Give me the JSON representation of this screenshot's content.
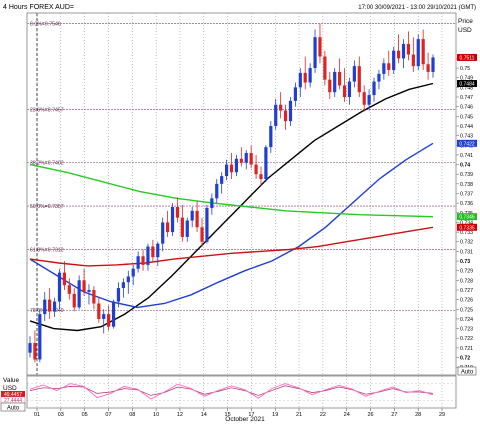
{
  "header": {
    "title": "4 Hours FOREX AUD=",
    "range": "17:00 30/09/2021 - 13:00 29/10/2021 (GMT)"
  },
  "price_axis": {
    "title": "Price",
    "unit": "USD",
    "ticks": [
      "0.751",
      "0.75",
      "0.749",
      "0.748",
      "0.747",
      "0.746",
      "0.745",
      "0.744",
      "0.743",
      "0.742",
      "0.741",
      "0.74",
      "0.739",
      "0.738",
      "0.737",
      "0.736",
      "0.735",
      "0.734",
      "0.733",
      "0.732",
      "0.731",
      "0.73",
      "0.729",
      "0.728",
      "0.727",
      "0.726",
      "0.725",
      "0.724",
      "0.723",
      "0.722",
      "0.721",
      "0.72",
      "0.719"
    ],
    "badges": [
      {
        "text": "0.7511",
        "value": 0.7511,
        "color": "#cc0000"
      },
      {
        "text": "0.7484",
        "value": 0.7484,
        "color": "#000000"
      },
      {
        "text": "0.7422",
        "value": 0.7422,
        "color": "#1e3fd0"
      },
      {
        "text": "0.7346",
        "value": 0.7346,
        "color": "#22bb22"
      },
      {
        "text": "0.7335",
        "value": 0.7335,
        "color": "#cc0000"
      }
    ],
    "auto_label": "Auto"
  },
  "indicator_panel": {
    "title": "Value",
    "unit": "USD",
    "badges": [
      "49.4457",
      "27.4444"
    ],
    "auto_label": "Auto"
  },
  "x_axis": {
    "ticks": [
      "01",
      "03",
      "05",
      "07",
      "08",
      "10",
      "12",
      "14",
      "15",
      "17",
      "19",
      "21",
      "22",
      "24",
      "26",
      "27",
      "28",
      "29"
    ],
    "label": "October 2021"
  },
  "fib_levels": [
    {
      "label": "0.0%=0.7546",
      "value": 0.7546
    },
    {
      "label": "23.6%=0.7457",
      "value": 0.7457
    },
    {
      "label": "38.2%=0.7402",
      "value": 0.7402
    },
    {
      "label": "50.0%=0.7357",
      "value": 0.7357
    },
    {
      "label": "61.8%=0.7312",
      "value": 0.7312
    },
    {
      "label": "78.6%=0.7249",
      "value": 0.7249
    }
  ],
  "colors": {
    "up": "#1e3fd0",
    "down": "#dd2222",
    "ma_black": "#000000",
    "ma_blue": "#1e3fd0",
    "ma_green": "#22cc22",
    "ma_red": "#cc1111",
    "fib": "#8b3a6b",
    "stoch": "#ff66cc"
  },
  "chart_data": {
    "type": "candlestick",
    "title": "4 Hours FOREX AUD=",
    "xlabel": "October 2021",
    "ylabel": "USD",
    "ylim": [
      0.7185,
      0.7555
    ],
    "grid": true,
    "candles": [
      [
        0.7205,
        0.7222,
        0.72,
        0.7215
      ],
      [
        0.7215,
        0.7228,
        0.7195,
        0.7198
      ],
      [
        0.7198,
        0.725,
        0.7195,
        0.7245
      ],
      [
        0.7245,
        0.7268,
        0.7238,
        0.726
      ],
      [
        0.726,
        0.7272,
        0.724,
        0.7248
      ],
      [
        0.7248,
        0.7262,
        0.7242,
        0.7258
      ],
      [
        0.7258,
        0.7292,
        0.725,
        0.7288
      ],
      [
        0.7288,
        0.73,
        0.727,
        0.7275
      ],
      [
        0.7275,
        0.7282,
        0.726,
        0.7266
      ],
      [
        0.7266,
        0.7272,
        0.7248,
        0.7252
      ],
      [
        0.7252,
        0.7285,
        0.725,
        0.728
      ],
      [
        0.728,
        0.7292,
        0.7264,
        0.7268
      ],
      [
        0.7268,
        0.7276,
        0.7255,
        0.727
      ],
      [
        0.727,
        0.7274,
        0.725,
        0.7256
      ],
      [
        0.7256,
        0.7262,
        0.7236,
        0.724
      ],
      [
        0.724,
        0.725,
        0.7225,
        0.7245
      ],
      [
        0.7245,
        0.7254,
        0.7228,
        0.7232
      ],
      [
        0.7232,
        0.726,
        0.723,
        0.7258
      ],
      [
        0.7258,
        0.7278,
        0.7252,
        0.7272
      ],
      [
        0.7272,
        0.7282,
        0.7262,
        0.7278
      ],
      [
        0.7278,
        0.729,
        0.7266,
        0.7284
      ],
      [
        0.7284,
        0.7296,
        0.7275,
        0.7292
      ],
      [
        0.7292,
        0.731,
        0.7288,
        0.7305
      ],
      [
        0.7305,
        0.7312,
        0.729,
        0.7296
      ],
      [
        0.7296,
        0.7318,
        0.729,
        0.7315
      ],
      [
        0.7315,
        0.7322,
        0.73,
        0.7304
      ],
      [
        0.7304,
        0.732,
        0.7295,
        0.7318
      ],
      [
        0.7318,
        0.7345,
        0.731,
        0.734
      ],
      [
        0.734,
        0.7352,
        0.7325,
        0.733
      ],
      [
        0.733,
        0.736,
        0.7326,
        0.7356
      ],
      [
        0.7356,
        0.7366,
        0.734,
        0.7345
      ],
      [
        0.7345,
        0.7358,
        0.732,
        0.7325
      ],
      [
        0.7325,
        0.7345,
        0.732,
        0.7342
      ],
      [
        0.7342,
        0.7356,
        0.7335,
        0.7352
      ],
      [
        0.7352,
        0.7362,
        0.733,
        0.7335
      ],
      [
        0.7335,
        0.7345,
        0.7315,
        0.732
      ],
      [
        0.732,
        0.7358,
        0.7318,
        0.7355
      ],
      [
        0.7355,
        0.737,
        0.7348,
        0.7365
      ],
      [
        0.7365,
        0.7385,
        0.736,
        0.738
      ],
      [
        0.738,
        0.7392,
        0.737,
        0.7388
      ],
      [
        0.7388,
        0.7405,
        0.7384,
        0.74
      ],
      [
        0.74,
        0.7412,
        0.7385,
        0.7392
      ],
      [
        0.7392,
        0.741,
        0.7388,
        0.7406
      ],
      [
        0.7406,
        0.7418,
        0.7398,
        0.7402
      ],
      [
        0.7402,
        0.7415,
        0.7395,
        0.7412
      ],
      [
        0.7412,
        0.742,
        0.7396,
        0.74
      ],
      [
        0.74,
        0.741,
        0.7385,
        0.739
      ],
      [
        0.739,
        0.7398,
        0.7378,
        0.7385
      ],
      [
        0.7385,
        0.742,
        0.7382,
        0.7418
      ],
      [
        0.7418,
        0.7445,
        0.7412,
        0.744
      ],
      [
        0.744,
        0.7468,
        0.7436,
        0.7462
      ],
      [
        0.7462,
        0.7475,
        0.7448,
        0.7456
      ],
      [
        0.7456,
        0.7462,
        0.7436,
        0.7445
      ],
      [
        0.7445,
        0.747,
        0.744,
        0.7466
      ],
      [
        0.7466,
        0.7485,
        0.746,
        0.748
      ],
      [
        0.748,
        0.75,
        0.747,
        0.7495
      ],
      [
        0.7495,
        0.7512,
        0.7478,
        0.7485
      ],
      [
        0.7485,
        0.7505,
        0.748,
        0.75
      ],
      [
        0.75,
        0.754,
        0.7495,
        0.7532
      ],
      [
        0.7532,
        0.7546,
        0.7505,
        0.7512
      ],
      [
        0.7512,
        0.7518,
        0.7482,
        0.7488
      ],
      [
        0.7488,
        0.7496,
        0.7468,
        0.7475
      ],
      [
        0.7475,
        0.75,
        0.747,
        0.7496
      ],
      [
        0.7496,
        0.751,
        0.7478,
        0.7482
      ],
      [
        0.7482,
        0.75,
        0.7465,
        0.747
      ],
      [
        0.747,
        0.749,
        0.7462,
        0.7486
      ],
      [
        0.7486,
        0.7508,
        0.748,
        0.7502
      ],
      [
        0.7502,
        0.7512,
        0.747,
        0.7475
      ],
      [
        0.7475,
        0.7482,
        0.7455,
        0.7462
      ],
      [
        0.7462,
        0.7478,
        0.7456,
        0.7472
      ],
      [
        0.7472,
        0.749,
        0.7465,
        0.7486
      ],
      [
        0.7486,
        0.7498,
        0.7478,
        0.7494
      ],
      [
        0.7494,
        0.751,
        0.7488,
        0.7505
      ],
      [
        0.7505,
        0.7518,
        0.7492,
        0.7498
      ],
      [
        0.7498,
        0.7522,
        0.7494,
        0.7518
      ],
      [
        0.7518,
        0.7535,
        0.7505,
        0.751
      ],
      [
        0.751,
        0.753,
        0.75,
        0.7525
      ],
      [
        0.7525,
        0.7538,
        0.7508,
        0.7514
      ],
      [
        0.7514,
        0.7532,
        0.7496,
        0.7502
      ],
      [
        0.7502,
        0.7535,
        0.7498,
        0.753
      ],
      [
        0.753,
        0.754,
        0.7498,
        0.7504
      ],
      [
        0.7504,
        0.7516,
        0.7488,
        0.7496
      ],
      [
        0.7496,
        0.7514,
        0.749,
        0.7511
      ]
    ],
    "series": [
      {
        "name": "",
        "color": "#000000",
        "values": [
          0.7238,
          0.723,
          0.7228,
          0.7232,
          0.7245,
          0.7262,
          0.7285,
          0.731,
          0.7335,
          0.736,
          0.7385,
          0.7405,
          0.7425,
          0.744,
          0.7455,
          0.7468,
          0.7478,
          0.7484
        ]
      },
      {
        "name": "",
        "color": "#1e3fd0",
        "values": [
          0.7302,
          0.7285,
          0.7268,
          0.7258,
          0.7252,
          0.7256,
          0.7265,
          0.7278,
          0.729,
          0.73,
          0.7315,
          0.7335,
          0.736,
          0.7385,
          0.7405,
          0.7422
        ]
      },
      {
        "name": "",
        "color": "#22cc22",
        "values": [
          0.74,
          0.7392,
          0.7382,
          0.7372,
          0.7365,
          0.736,
          0.7356,
          0.7352,
          0.735,
          0.7348,
          0.7347,
          0.7346
        ]
      },
      {
        "name": "",
        "color": "#cc1111",
        "values": [
          0.7302,
          0.7298,
          0.7295,
          0.7296,
          0.7298,
          0.7302,
          0.7305,
          0.7308,
          0.731,
          0.7312,
          0.7315,
          0.732,
          0.7325,
          0.733,
          0.7335
        ]
      }
    ],
    "stochastic": {
      "ylim": [
        0,
        100
      ],
      "k": [
        60,
        75,
        55,
        80,
        70,
        30,
        45,
        70,
        60,
        25,
        50,
        78,
        62,
        35,
        55,
        72,
        58,
        28,
        62,
        80,
        65,
        40,
        58,
        74,
        60,
        35,
        52,
        68,
        48,
        55,
        40
      ],
      "d": [
        55,
        65,
        62,
        70,
        68,
        45,
        50,
        62,
        58,
        38,
        48,
        68,
        60,
        42,
        52,
        65,
        55,
        38,
        55,
        72,
        62,
        48,
        55,
        68,
        58,
        42,
        50,
        62,
        50,
        50,
        45
      ]
    }
  }
}
